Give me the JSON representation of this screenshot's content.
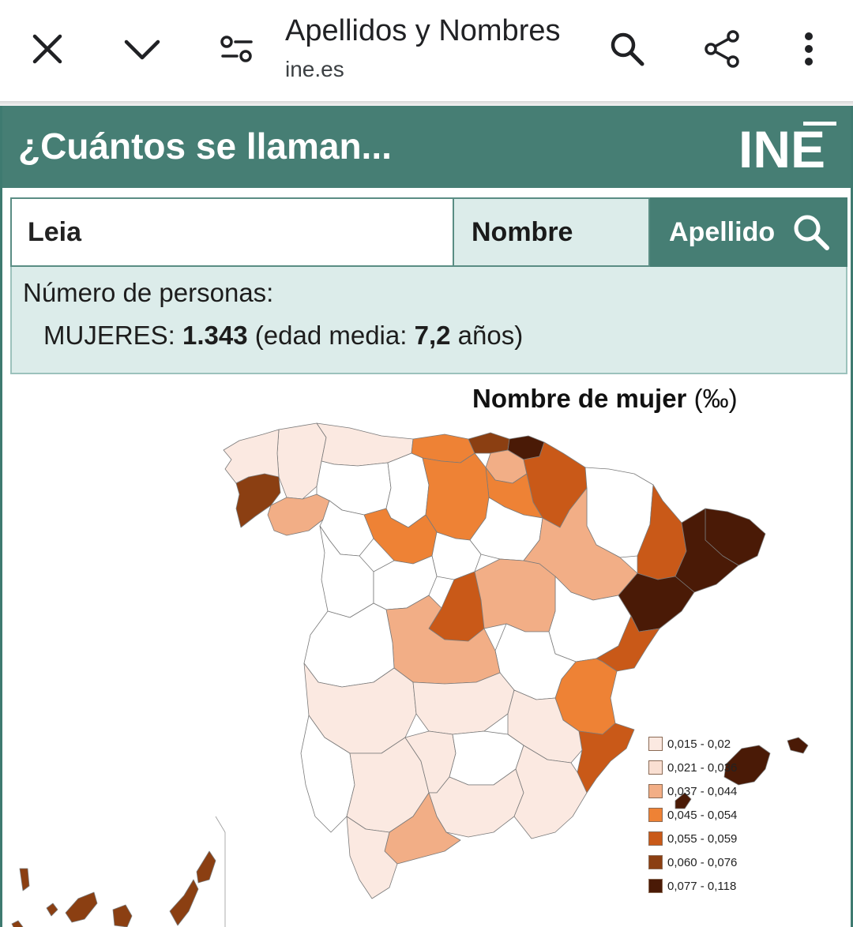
{
  "browser": {
    "title": "Apellidos y Nombres",
    "url": "ine.es",
    "icons": [
      "close-icon",
      "chevron-down-icon",
      "tune-icon",
      "search-icon",
      "share-icon",
      "more-vert-icon"
    ]
  },
  "header": {
    "title": "¿Cuántos se llaman...",
    "logo": "INE",
    "color": "#467e74"
  },
  "search": {
    "value": "Leia",
    "nombre_label": "Nombre",
    "apellido_label": "Apellido"
  },
  "result": {
    "label": "Número de personas:",
    "gender": "MUJERES:",
    "count": "1.343",
    "age_prefix": "(edad media:",
    "age": "7,2",
    "age_suffix": "años)"
  },
  "map": {
    "title": "Nombre de mujer",
    "unit": "(‰)",
    "legend": [
      {
        "label": "0,015 - 0,02",
        "color": "#fbe9e1"
      },
      {
        "label": "0,021 - 0,036",
        "color": "#f9dfd2"
      },
      {
        "label": "0,037 - 0,044",
        "color": "#f2ae86"
      },
      {
        "label": "0,045 - 0,054",
        "color": "#ee8235"
      },
      {
        "label": "0,055 - 0,059",
        "color": "#c95918"
      },
      {
        "label": "0,060 - 0,076",
        "color": "#8b3f12"
      },
      {
        "label": "0,077 - 0,118",
        "color": "#4a1a06"
      }
    ]
  }
}
